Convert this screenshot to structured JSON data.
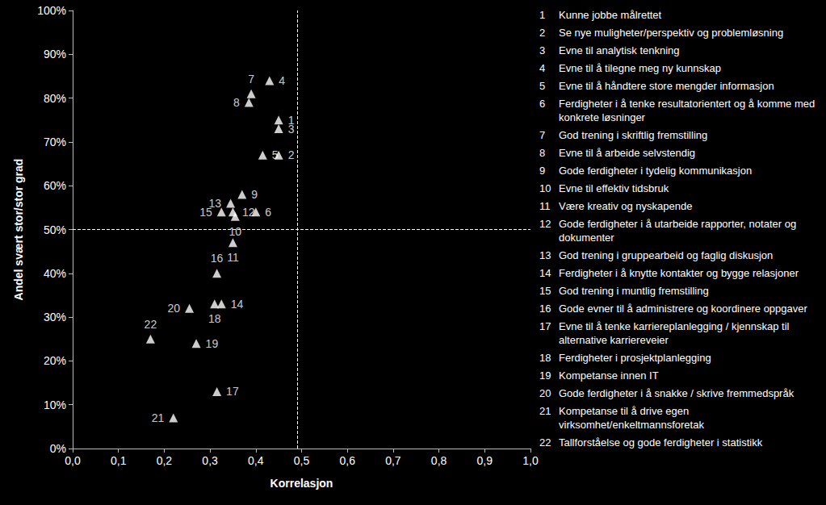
{
  "chart_data": {
    "type": "scatter",
    "xlabel": "Korrelasjon",
    "ylabel": "Andel svært stor/stor grad",
    "point_labels": [
      "1",
      "2",
      "3",
      "4",
      "5",
      "6",
      "7",
      "8",
      "9",
      "10",
      "11",
      "12",
      "13",
      "14",
      "15",
      "16",
      "17",
      "18",
      "19",
      "20",
      "21",
      "22"
    ],
    "x": [
      0.45,
      0.45,
      0.45,
      0.43,
      0.415,
      0.4,
      0.39,
      0.385,
      0.37,
      0.355,
      0.35,
      0.35,
      0.345,
      0.325,
      0.325,
      0.315,
      0.315,
      0.31,
      0.27,
      0.255,
      0.22,
      0.17
    ],
    "values": [
      75,
      67,
      73,
      84,
      67,
      54,
      81,
      79,
      58,
      53,
      47,
      54,
      56,
      33,
      54,
      40,
      13,
      33,
      24,
      32,
      7,
      25
    ],
    "descriptions": [
      "Kunne jobbe målrettet",
      "Se nye muligheter/perspektiv og problemløsning",
      "Evne til analytisk tenkning",
      "Evne til å tilegne meg ny kunnskap",
      "Evne til å håndtere store mengder informasjon",
      "Ferdigheter i å tenke resultatorientert og å komme med konkrete løsninger",
      "God trening i skriftlig fremstilling",
      "Evne til å arbeide selvstendig",
      "Gode ferdigheter i tydelig kommunikasjon",
      "Evne til effektiv tidsbruk",
      "Være kreativ og nyskapende",
      "Gode ferdigheter i å utarbeide rapporter, notater og dokumenter",
      "God trening i gruppearbeid og faglig diskusjon",
      "Ferdigheter i å knytte kontakter og bygge relasjoner",
      "God trening i muntlig fremstilling",
      "Gode evner til å administrere og koordinere oppgaver",
      "Evne til å tenke karriereplanlegging / kjennskap til alternative karriereveier",
      "Ferdigheter i prosjektplanlegging",
      "Kompetanse innen IT",
      "Gode ferdigheter i å snakke / skrive fremmedspråk",
      "Kompetanse til å drive egen virksomhet/enkeltmannsforetak",
      "Tallforståelse og gode ferdigheter i statistikk"
    ],
    "reference_lines": {
      "x": 0.49,
      "y": 50
    },
    "xlim": [
      0,
      1
    ],
    "xticks": [
      {
        "value": 0,
        "label": "0,0"
      },
      {
        "value": 0.1,
        "label": "0,1"
      },
      {
        "value": 0.2,
        "label": "0,2"
      },
      {
        "value": 0.3,
        "label": "0,3"
      },
      {
        "value": 0.4,
        "label": "0,4"
      },
      {
        "value": 0.5,
        "label": "0,5"
      },
      {
        "value": 0.6,
        "label": "0,6"
      },
      {
        "value": 0.7,
        "label": "0,7"
      },
      {
        "value": 0.8,
        "label": "0,8"
      },
      {
        "value": 0.9,
        "label": "0,9"
      },
      {
        "value": 1,
        "label": "1,0"
      }
    ],
    "ylim": [
      0,
      100
    ],
    "yticks": [
      {
        "value": 0,
        "label": "0%"
      },
      {
        "value": 10,
        "label": "10%"
      },
      {
        "value": 20,
        "label": "20%"
      },
      {
        "value": 30,
        "label": "30%"
      },
      {
        "value": 40,
        "label": "40%"
      },
      {
        "value": 50,
        "label": "50%"
      },
      {
        "value": 60,
        "label": "60%"
      },
      {
        "value": 70,
        "label": "70%"
      },
      {
        "value": 80,
        "label": "80%"
      },
      {
        "value": 90,
        "label": "90%"
      },
      {
        "value": 100,
        "label": "100%"
      }
    ],
    "marker": "triangle",
    "color": "#ffffff",
    "grid": false
  }
}
